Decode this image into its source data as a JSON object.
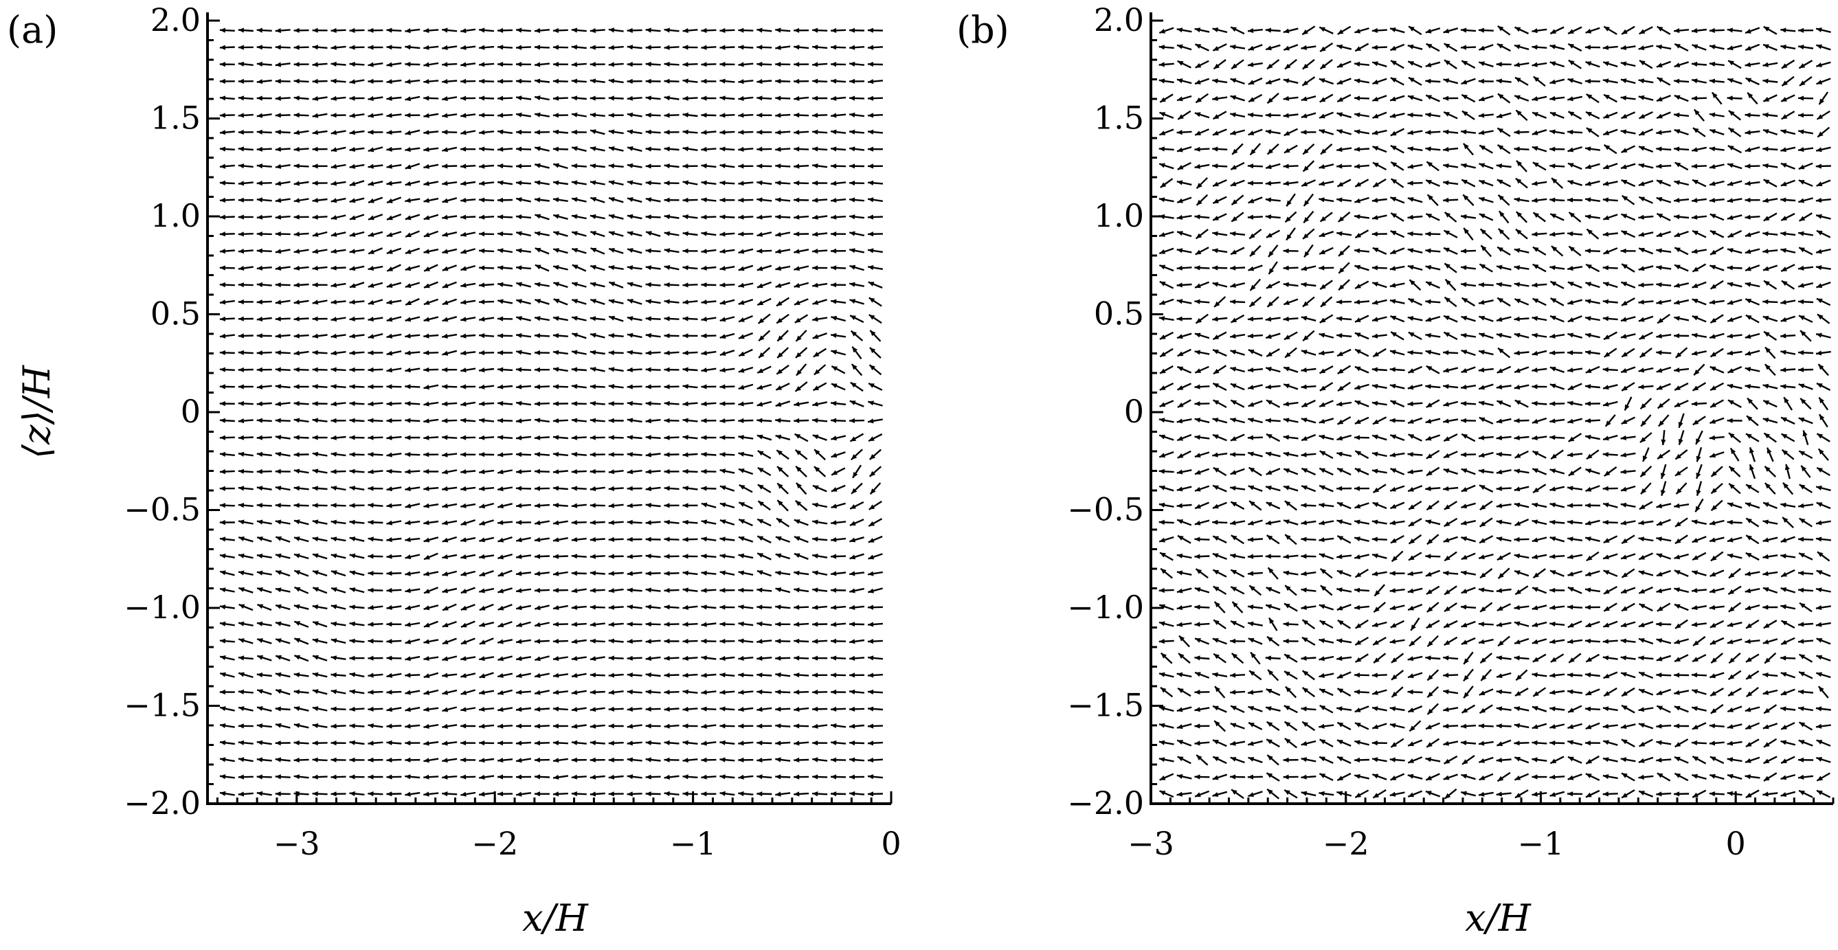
{
  "chart_data": [
    {
      "type": "quiver",
      "panel_label": "(a)",
      "xlabel": "x/H",
      "ylabel": "⟨z⟩/H",
      "xlim": [
        -3.45,
        0.0
      ],
      "ylim": [
        -2.0,
        2.0
      ],
      "xticks": [
        -3,
        -2,
        -1,
        0
      ],
      "xtick_labels": [
        "−3",
        "−2",
        "−1",
        "0"
      ],
      "yticks": [
        2.0,
        1.5,
        1.0,
        0.5,
        0,
        -0.5,
        -1.0,
        -1.5,
        -2.0
      ],
      "ytick_labels": [
        "2.0",
        "1.5",
        "1.0",
        "0.5",
        "0",
        "−0.5",
        "−1.0",
        "−1.5",
        "−2.0"
      ],
      "field_x_range": [
        -3.35,
        -0.08
      ],
      "field_z_range": [
        -1.95,
        1.95
      ],
      "grid": false,
      "vortices": [
        {
          "x": -0.3,
          "z": 0.45,
          "strength": 0.8,
          "radius": 0.35
        },
        {
          "x": -0.3,
          "z": -0.5,
          "strength": -0.8,
          "radius": 0.35
        },
        {
          "x": -2.0,
          "z": 0.9,
          "strength": 0.35,
          "radius": 0.6
        },
        {
          "x": -2.6,
          "z": -1.05,
          "strength": -0.35,
          "radius": 0.6
        }
      ]
    },
    {
      "type": "quiver",
      "panel_label": "(b)",
      "xlabel": "x/H",
      "ylabel": "",
      "xlim": [
        -3.0,
        0.5
      ],
      "ylim": [
        -2.0,
        2.0
      ],
      "xticks": [
        -3,
        -2,
        -1,
        0
      ],
      "xtick_labels": [
        "−3",
        "−2",
        "−1",
        "0"
      ],
      "yticks": [
        2.0,
        1.5,
        1.0,
        0.5,
        0,
        -0.5,
        -1.0,
        -1.5,
        -2.0
      ],
      "ytick_labels": [
        "2.0",
        "1.5",
        "1.0",
        "0.5",
        "0",
        "−0.5",
        "−1.0",
        "−1.5",
        "−2.0"
      ],
      "field_x_range": [
        -2.92,
        0.45
      ],
      "field_z_range": [
        -1.95,
        1.95
      ],
      "grid": false,
      "vortices": [
        {
          "x": -0.05,
          "z": 0.0,
          "strength": 1.0,
          "radius": 0.45
        },
        {
          "x": -1.8,
          "z": 1.1,
          "strength": 0.5,
          "radius": 0.7
        },
        {
          "x": -2.0,
          "z": -1.3,
          "strength": -0.5,
          "radius": 0.7
        },
        {
          "x": 0.25,
          "z": -1.2,
          "strength": 0.6,
          "radius": 0.35
        },
        {
          "x": 0.2,
          "z": 1.5,
          "strength": -0.5,
          "radius": 0.35
        }
      ]
    }
  ]
}
